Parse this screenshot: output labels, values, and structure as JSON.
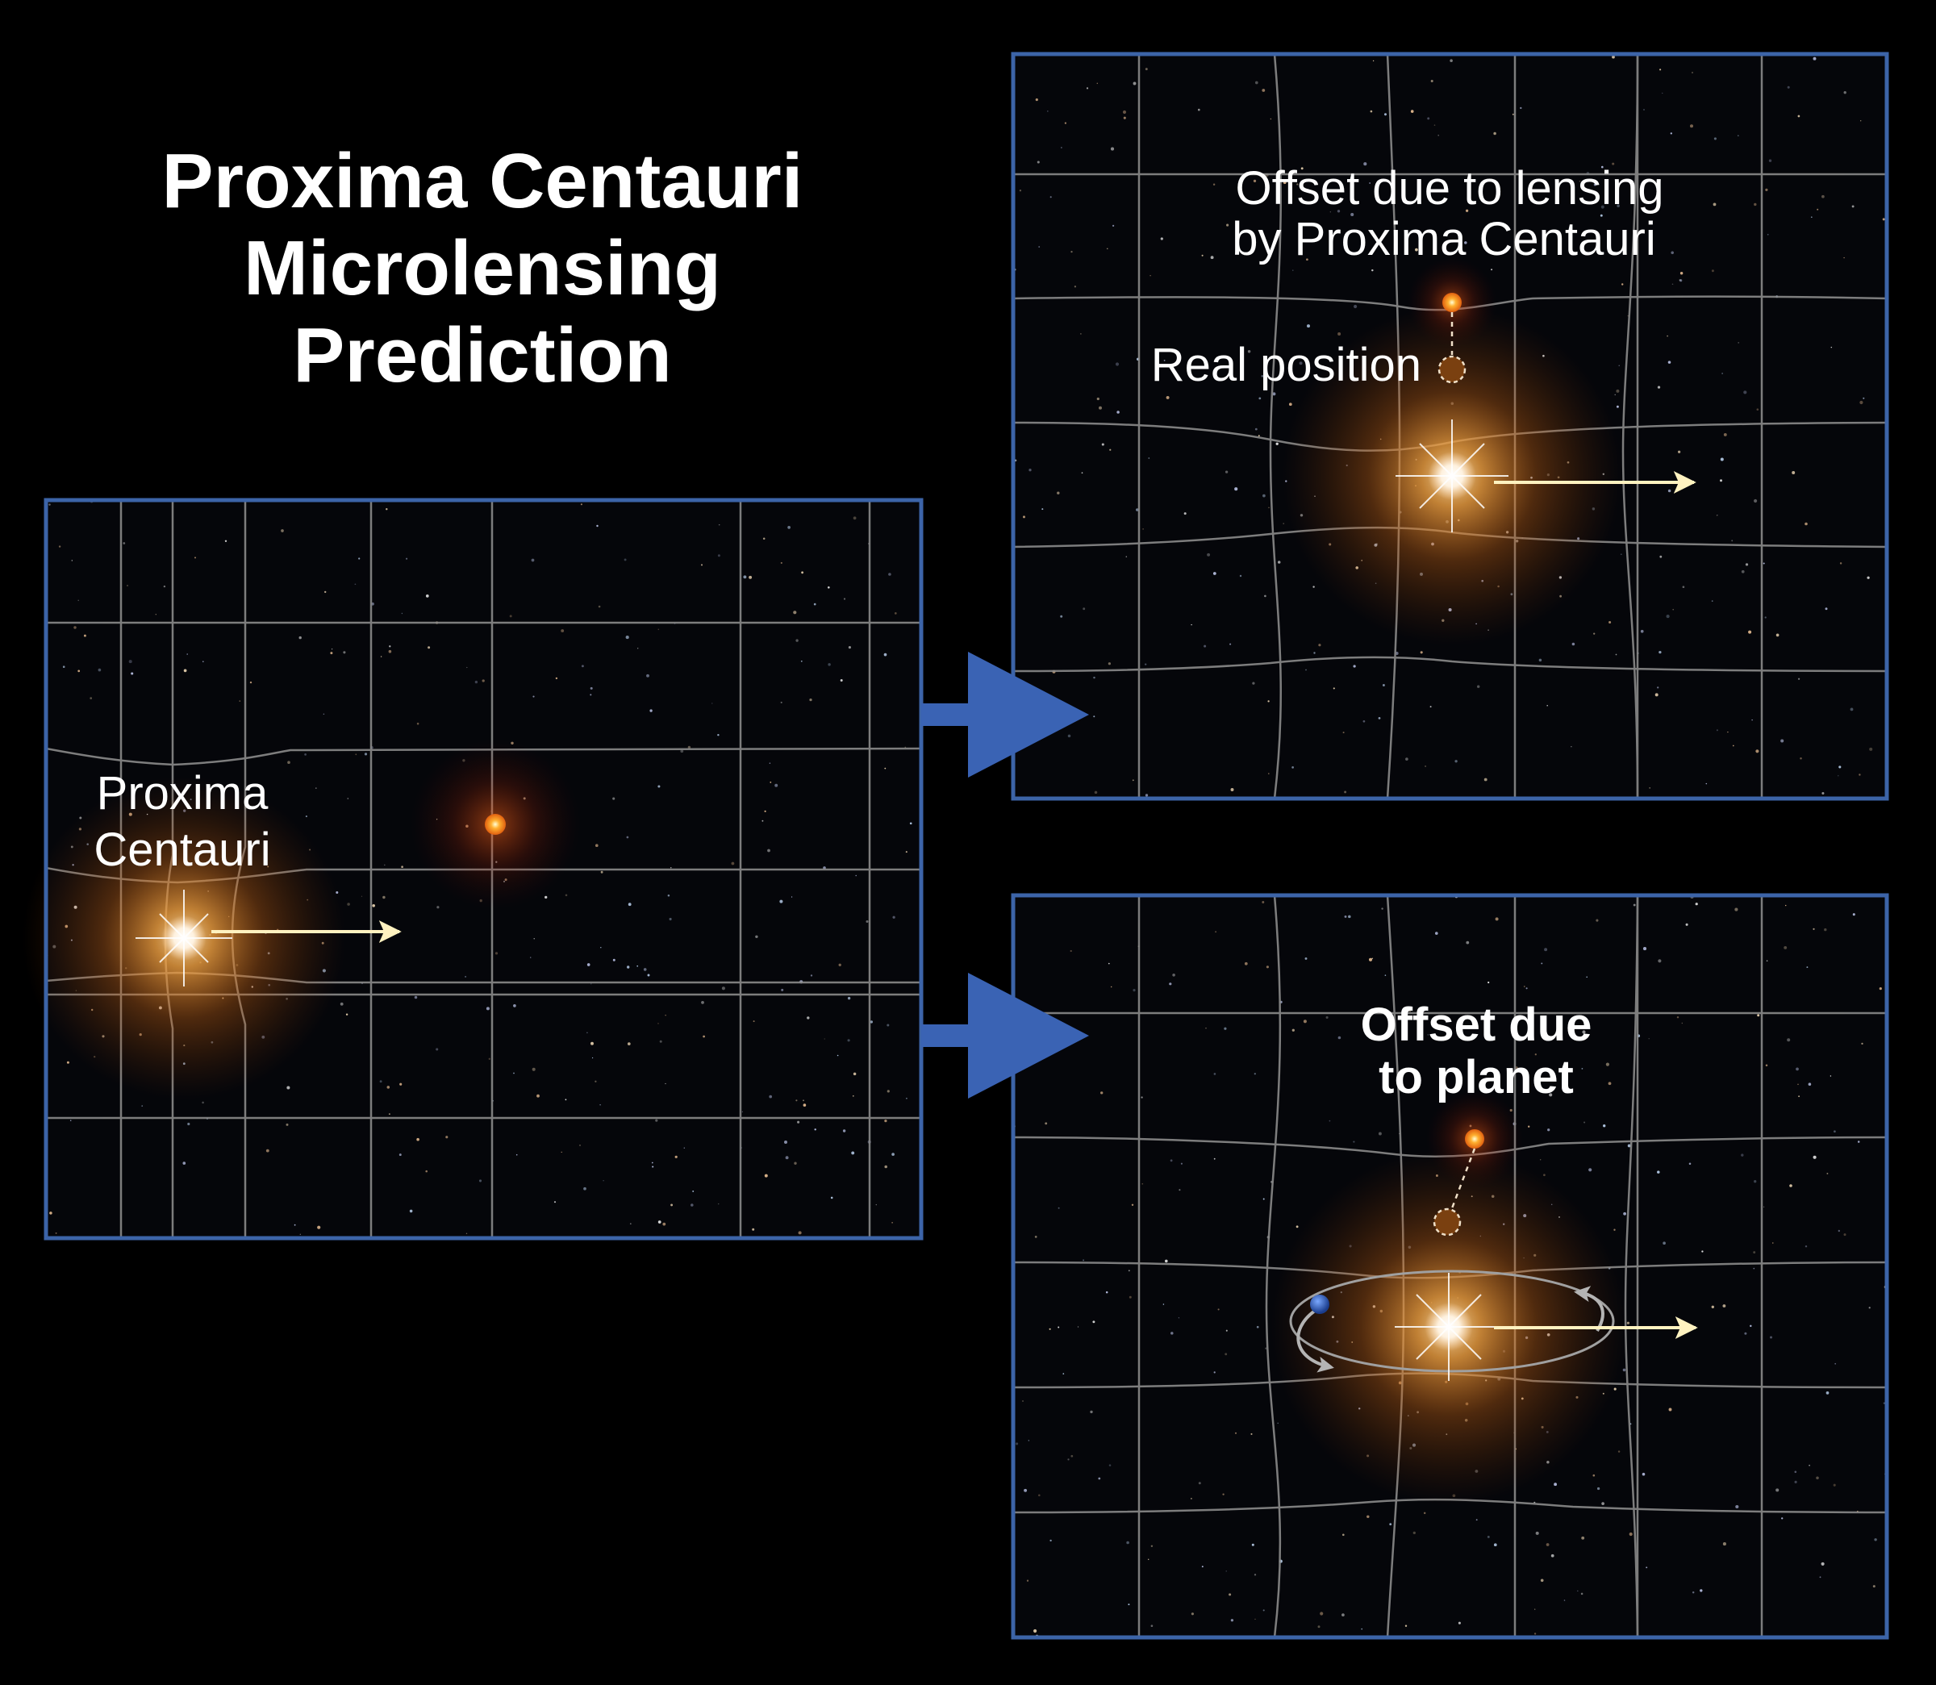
{
  "title": {
    "line1": "Proxima Centauri",
    "line2": "Microlensing",
    "line3": "Prediction"
  },
  "left_panel": {
    "star_label_line1": "Proxima",
    "star_label_line2": "Centauri"
  },
  "top_right_panel": {
    "offset_label_line1": "Offset due to lensing",
    "offset_label_line2": "by Proxima Centauri",
    "real_position_label": "Real position"
  },
  "bottom_right_panel": {
    "offset_label_line1": "Offset due",
    "offset_label_line2": "to planet"
  },
  "colors": {
    "background": "#000000",
    "panel_border": "#3c64a8",
    "arrow_blue": "#3a63b4",
    "grid_line": "#8a8a8a",
    "motion_arrow": "#fff2c0",
    "background_star": "#ff9a2a",
    "lensing_star_glow": "#e07818",
    "planet": "#2a58b8"
  },
  "icons": {
    "proxima_star": "lensing-star-icon",
    "background_star": "background-star-icon",
    "real_position": "dashed-circle-icon",
    "planet": "planet-icon",
    "transition_arrow": "right-arrow-icon"
  }
}
